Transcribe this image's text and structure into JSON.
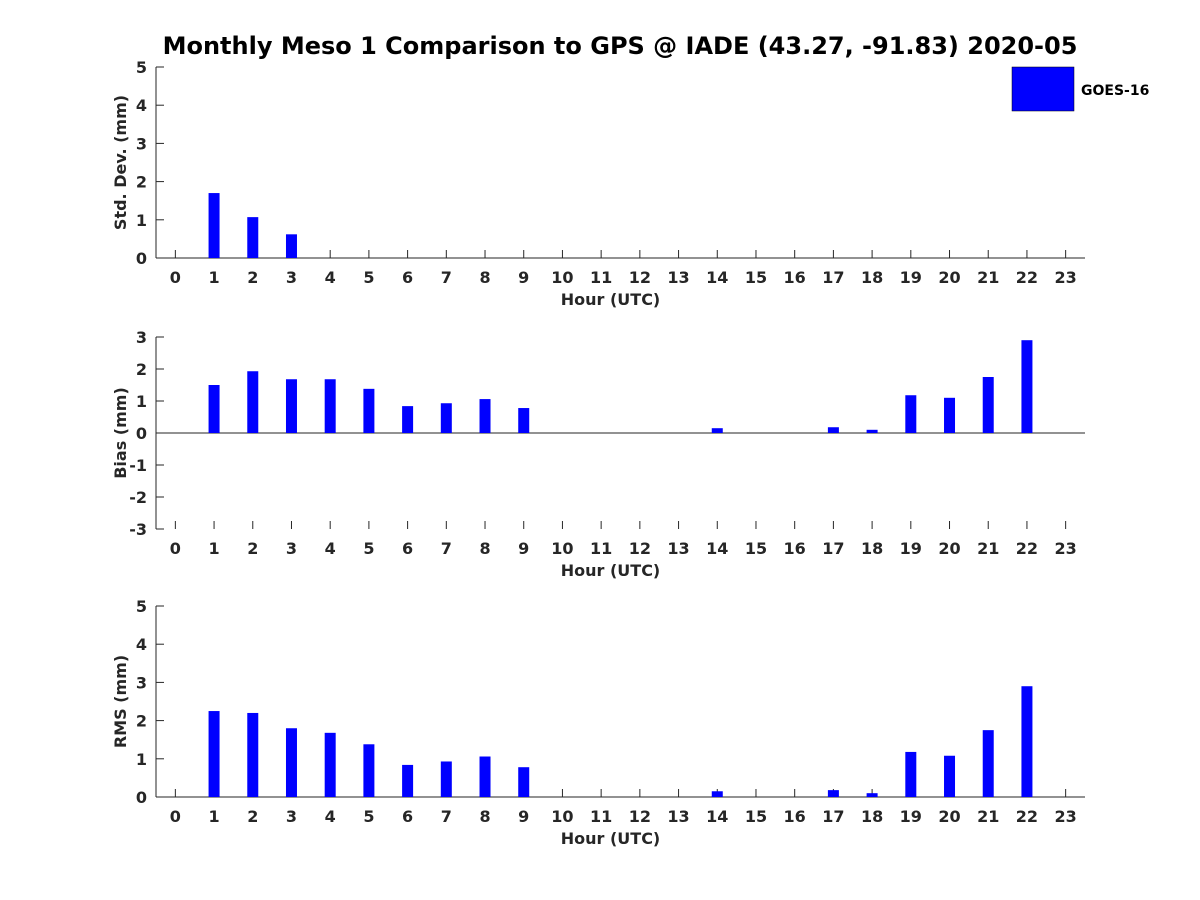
{
  "chart_data": {
    "title": "Monthly Meso 1 Comparison to GPS @ IADE (43.27, -91.83) 2020-05",
    "legend": {
      "label": "GOES-16",
      "color": "#0000ff",
      "placement": "top-right"
    },
    "bar_color": "#0000ff",
    "panels": [
      {
        "type": "bar",
        "ylabel": "Std. Dev. (mm)",
        "xlabel": "Hour (UTC)",
        "ylim": [
          0,
          5
        ],
        "yticks": [
          "0",
          "1",
          "2",
          "3",
          "4",
          "5"
        ],
        "categories": [
          "0",
          "1",
          "2",
          "3",
          "4",
          "5",
          "6",
          "7",
          "8",
          "9",
          "10",
          "11",
          "12",
          "13",
          "14",
          "15",
          "16",
          "17",
          "18",
          "19",
          "20",
          "21",
          "22",
          "23"
        ],
        "values": [
          null,
          1.7,
          1.07,
          0.62,
          null,
          null,
          null,
          null,
          null,
          null,
          null,
          null,
          null,
          null,
          null,
          null,
          null,
          null,
          null,
          null,
          null,
          null,
          null,
          null
        ]
      },
      {
        "type": "bar",
        "ylabel": "Bias (mm)",
        "xlabel": "Hour (UTC)",
        "ylim": [
          -3,
          3
        ],
        "yticks": [
          "-3",
          "-2",
          "-1",
          "0",
          "1",
          "2",
          "3"
        ],
        "categories": [
          "0",
          "1",
          "2",
          "3",
          "4",
          "5",
          "6",
          "7",
          "8",
          "9",
          "10",
          "11",
          "12",
          "13",
          "14",
          "15",
          "16",
          "17",
          "18",
          "19",
          "20",
          "21",
          "22",
          "23"
        ],
        "values": [
          null,
          1.5,
          1.93,
          1.68,
          1.68,
          1.38,
          0.84,
          0.93,
          1.06,
          0.78,
          null,
          null,
          null,
          null,
          0.15,
          null,
          null,
          0.18,
          0.1,
          1.18,
          1.1,
          1.75,
          2.9,
          null
        ]
      },
      {
        "type": "bar",
        "ylabel": "RMS (mm)",
        "xlabel": "Hour (UTC)",
        "ylim": [
          0,
          5
        ],
        "yticks": [
          "0",
          "1",
          "2",
          "3",
          "4",
          "5"
        ],
        "categories": [
          "0",
          "1",
          "2",
          "3",
          "4",
          "5",
          "6",
          "7",
          "8",
          "9",
          "10",
          "11",
          "12",
          "13",
          "14",
          "15",
          "16",
          "17",
          "18",
          "19",
          "20",
          "21",
          "22",
          "23"
        ],
        "values": [
          null,
          2.25,
          2.2,
          1.8,
          1.68,
          1.38,
          0.84,
          0.93,
          1.06,
          0.78,
          null,
          null,
          null,
          null,
          0.15,
          null,
          null,
          0.18,
          0.1,
          1.18,
          1.08,
          1.75,
          2.9,
          null
        ]
      }
    ]
  }
}
